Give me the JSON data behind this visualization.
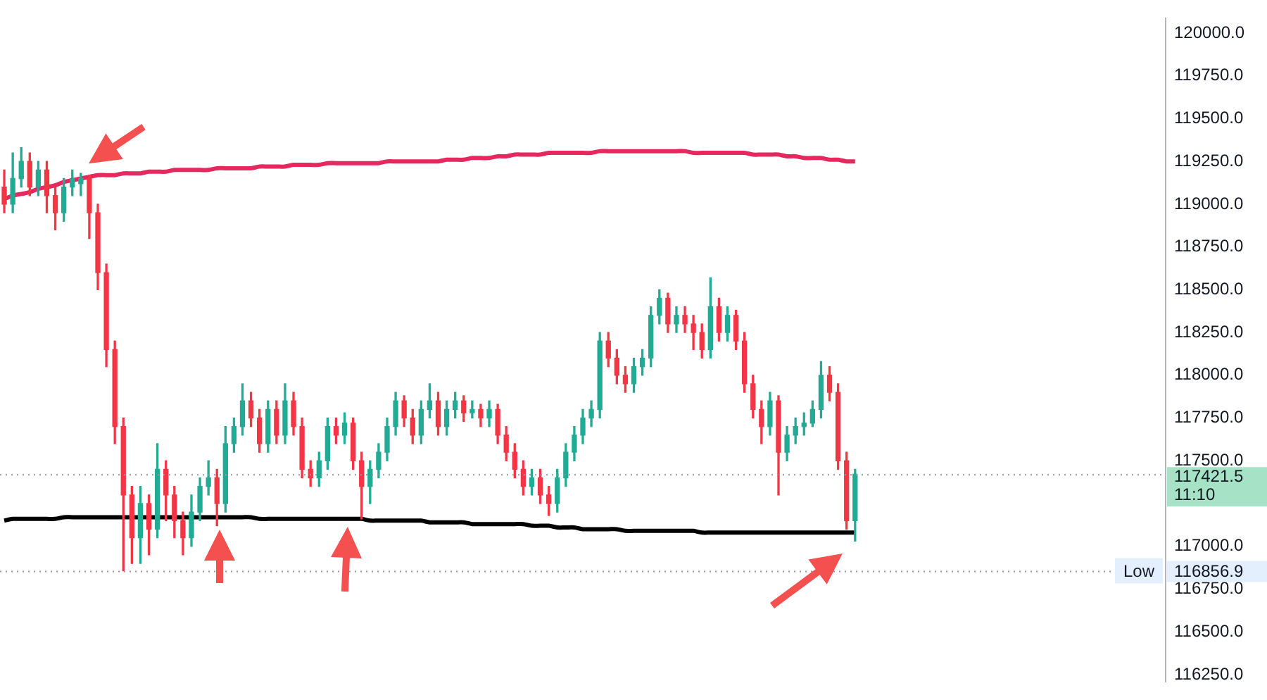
{
  "chart_data": {
    "type": "candlestick",
    "categories": [
      null,
      null,
      null,
      null,
      null,
      null,
      null,
      null,
      null,
      null,
      null,
      null,
      null,
      null,
      null,
      null,
      null,
      null,
      null,
      null,
      null,
      null,
      null,
      null,
      null,
      null,
      null,
      null,
      null,
      null,
      null,
      null,
      null,
      null,
      null,
      null,
      null,
      null,
      null,
      null,
      null,
      null,
      null,
      null,
      null,
      null,
      null,
      null,
      null,
      null,
      null,
      null,
      null,
      null,
      null,
      null,
      null,
      null,
      null,
      null,
      null,
      null,
      null,
      null,
      null,
      null,
      null,
      null,
      null,
      null,
      null,
      null,
      null,
      null,
      null,
      null,
      null,
      null,
      null,
      null,
      null,
      null,
      null,
      null,
      null,
      null,
      null,
      null,
      null,
      null,
      null,
      null,
      null,
      null,
      null,
      null,
      null,
      null,
      null,
      null,
      null,
      null,
      null,
      null,
      null,
      null,
      null,
      null,
      null,
      null,
      null,
      null,
      null,
      null,
      null,
      null,
      null,
      null,
      null,
      null,
      null,
      null,
      null,
      null,
      null,
      null,
      null,
      null,
      null,
      null,
      null,
      null,
      null,
      null,
      null,
      null,
      null
    ],
    "ohlc": [
      [
        119100,
        119200,
        118950,
        119000
      ],
      [
        119000,
        119300,
        118950,
        119150
      ],
      [
        119150,
        119330,
        119100,
        119250
      ],
      [
        119250,
        119300,
        119050,
        119100
      ],
      [
        119100,
        119250,
        119050,
        119200
      ],
      [
        119200,
        119250,
        118950,
        119050
      ],
      [
        119050,
        119100,
        118850,
        118950
      ],
      [
        118950,
        119150,
        118900,
        119100
      ],
      [
        119100,
        119200,
        119050,
        119150
      ],
      [
        119120,
        119180,
        119050,
        119150
      ],
      [
        119150,
        119170,
        118800,
        118950
      ],
      [
        118950,
        119000,
        118500,
        118600
      ],
      [
        118600,
        118650,
        118050,
        118150
      ],
      [
        118150,
        118200,
        117600,
        117700
      ],
      [
        117700,
        117750,
        116856.9,
        117300
      ],
      [
        117300,
        117350,
        116900,
        117050
      ],
      [
        117050,
        117350,
        116900,
        117250
      ],
      [
        117250,
        117300,
        116950,
        117100
      ],
      [
        117100,
        117600,
        117050,
        117450
      ],
      [
        117450,
        117500,
        117150,
        117300
      ],
      [
        117300,
        117350,
        117050,
        117150
      ],
      [
        117150,
        117200,
        116950,
        117050
      ],
      [
        117050,
        117300,
        117000,
        117200
      ],
      [
        117200,
        117400,
        117150,
        117350
      ],
      [
        117350,
        117500,
        117300,
        117400
      ],
      [
        117400,
        117450,
        117120,
        117250
      ],
      [
        117250,
        117700,
        117200,
        117600
      ],
      [
        117600,
        117750,
        117550,
        117700
      ],
      [
        117700,
        117950,
        117650,
        117850
      ],
      [
        117850,
        117900,
        117700,
        117750
      ],
      [
        117750,
        117800,
        117550,
        117600
      ],
      [
        117600,
        117850,
        117550,
        117800
      ],
      [
        117800,
        117850,
        117600,
        117650
      ],
      [
        117650,
        117950,
        117600,
        117850
      ],
      [
        117850,
        117900,
        117650,
        117700
      ],
      [
        117700,
        117750,
        117400,
        117450
      ],
      [
        117450,
        117500,
        117350,
        117400
      ],
      [
        117400,
        117550,
        117350,
        117500
      ],
      [
        117500,
        117750,
        117450,
        117700
      ],
      [
        117700,
        117750,
        117600,
        117650
      ],
      [
        117650,
        117780,
        117600,
        117720
      ],
      [
        117720,
        117750,
        117450,
        117500
      ],
      [
        117500,
        117550,
        117160,
        117350
      ],
      [
        117350,
        117500,
        117250,
        117450
      ],
      [
        117450,
        117600,
        117400,
        117550
      ],
      [
        117550,
        117750,
        117500,
        117700
      ],
      [
        117700,
        117900,
        117650,
        117850
      ],
      [
        117850,
        117880,
        117700,
        117750
      ],
      [
        117750,
        117800,
        117600,
        117650
      ],
      [
        117650,
        117850,
        117600,
        117800
      ],
      [
        117800,
        117950,
        117750,
        117850
      ],
      [
        117850,
        117900,
        117650,
        117700
      ],
      [
        117700,
        117850,
        117650,
        117800
      ],
      [
        117800,
        117900,
        117750,
        117850
      ],
      [
        117850,
        117880,
        117730,
        117780
      ],
      [
        117780,
        117850,
        117750,
        117800
      ],
      [
        117800,
        117830,
        117700,
        117750
      ],
      [
        117750,
        117850,
        117700,
        117800
      ],
      [
        117800,
        117830,
        117600,
        117650
      ],
      [
        117650,
        117700,
        117500,
        117550
      ],
      [
        117550,
        117600,
        117400,
        117450
      ],
      [
        117450,
        117500,
        117300,
        117350
      ],
      [
        117350,
        117450,
        117300,
        117400
      ],
      [
        117400,
        117450,
        117250,
        117300
      ],
      [
        117300,
        117350,
        117180,
        117250
      ],
      [
        117250,
        117450,
        117200,
        117400
      ],
      [
        117400,
        117600,
        117350,
        117550
      ],
      [
        117550,
        117700,
        117500,
        117650
      ],
      [
        117650,
        117800,
        117600,
        117750
      ],
      [
        117750,
        117850,
        117700,
        117800
      ],
      [
        117800,
        118250,
        117750,
        118200
      ],
      [
        118200,
        118250,
        118050,
        118100
      ],
      [
        118100,
        118150,
        117950,
        118000
      ],
      [
        118000,
        118050,
        117900,
        117950
      ],
      [
        117950,
        118100,
        117900,
        118050
      ],
      [
        118050,
        118150,
        118000,
        118100
      ],
      [
        118100,
        118400,
        118050,
        118350
      ],
      [
        118350,
        118500,
        118300,
        118450
      ],
      [
        118450,
        118480,
        118250,
        118300
      ],
      [
        118300,
        118400,
        118250,
        118350
      ],
      [
        118350,
        118400,
        118250,
        118300
      ],
      [
        118300,
        118350,
        118150,
        118250
      ],
      [
        118250,
        118300,
        118100,
        118150
      ],
      [
        118150,
        118570,
        118100,
        118400
      ],
      [
        118400,
        118450,
        118200,
        118250
      ],
      [
        118250,
        118400,
        118200,
        118350
      ],
      [
        118350,
        118380,
        118150,
        118200
      ],
      [
        118200,
        118250,
        117900,
        117950
      ],
      [
        117950,
        118000,
        117750,
        117800
      ],
      [
        117800,
        117850,
        117600,
        117700
      ],
      [
        117700,
        117900,
        117650,
        117850
      ],
      [
        117850,
        117880,
        117300,
        117550
      ],
      [
        117550,
        117700,
        117500,
        117650
      ],
      [
        117650,
        117750,
        117600,
        117700
      ],
      [
        117700,
        117780,
        117650,
        117720
      ],
      [
        117720,
        117850,
        117700,
        117800
      ],
      [
        117800,
        118080,
        117750,
        118000
      ],
      [
        118000,
        118050,
        117850,
        117900
      ],
      [
        117900,
        117950,
        117450,
        117500
      ],
      [
        117500,
        117550,
        117100,
        117150
      ],
      [
        117150,
        117450,
        117030,
        117421.5
      ],
      null,
      null,
      null,
      null,
      null,
      null,
      null,
      null,
      null,
      null,
      null,
      null,
      null,
      null,
      null,
      null,
      null,
      null,
      null,
      null,
      null,
      null,
      null,
      null,
      null,
      null,
      null,
      null,
      null,
      null,
      null,
      null,
      null,
      null,
      null,
      null
    ],
    "colors": [
      "#f23645",
      "#22ab94",
      "#22ab94",
      "#f23645",
      "#22ab94",
      "#f23645",
      "#f23645",
      "#22ab94",
      "#22ab94",
      "#22ab94",
      "#f23645",
      "#f23645",
      "#f23645",
      "#f23645",
      "#f23645",
      "#f23645",
      "#22ab94",
      "#f23645",
      "#22ab94",
      "#f23645",
      "#f23645",
      "#f23645",
      "#22ab94",
      "#22ab94",
      "#22ab94",
      "#f23645",
      "#22ab94",
      "#22ab94",
      "#22ab94",
      "#f23645",
      "#f23645",
      "#22ab94",
      "#f23645",
      "#22ab94",
      "#f23645",
      "#f23645",
      "#f23645",
      "#22ab94",
      "#22ab94",
      "#f23645",
      "#22ab94",
      "#f23645",
      "#f23645",
      "#22ab94",
      "#22ab94",
      "#22ab94",
      "#22ab94",
      "#f23645",
      "#f23645",
      "#22ab94",
      "#22ab94",
      "#f23645",
      "#22ab94",
      "#22ab94",
      "#f23645",
      "#22ab94",
      "#f23645",
      "#22ab94",
      "#f23645",
      "#f23645",
      "#f23645",
      "#f23645",
      "#22ab94",
      "#f23645",
      "#f23645",
      "#22ab94",
      "#22ab94",
      "#22ab94",
      "#22ab94",
      "#22ab94",
      "#22ab94",
      "#f23645",
      "#f23645",
      "#f23645",
      "#22ab94",
      "#22ab94",
      "#22ab94",
      "#22ab94",
      "#f23645",
      "#22ab94",
      "#f23645",
      "#f23645",
      "#f23645",
      "#22ab94",
      "#f23645",
      "#22ab94",
      "#f23645",
      "#f23645",
      "#f23645",
      "#f23645",
      "#22ab94",
      "#f23645",
      "#22ab94",
      "#22ab94",
      "#22ab94",
      "#22ab94",
      "#22ab94",
      "#f23645",
      "#f23645",
      "#f23645",
      "#22ab94",
      null,
      null,
      null,
      null,
      null,
      null,
      null,
      null,
      null,
      null,
      null,
      null,
      null,
      null,
      null,
      null,
      null,
      null,
      null,
      null,
      null,
      null,
      null,
      null,
      null,
      null,
      null,
      null,
      null,
      null,
      null,
      null,
      null,
      null,
      null,
      null
    ],
    "series": [
      {
        "type": "line",
        "color": "#e5295f",
        "values": [
          119030,
          119050,
          119060,
          119070,
          119090,
          119100,
          119110,
          119130,
          119140,
          119150,
          119160,
          119170,
          119170,
          119170,
          119180,
          119180,
          119180,
          119190,
          119190,
          119190,
          119200,
          119200,
          119200,
          119200,
          119200,
          119210,
          119210,
          119210,
          119210,
          119210,
          119220,
          119220,
          119220,
          119220,
          119230,
          119230,
          119230,
          119230,
          119240,
          119240,
          119240,
          119240,
          119240,
          119240,
          119240,
          119250,
          119250,
          119250,
          119250,
          119250,
          119250,
          119250,
          119260,
          119260,
          119260,
          119270,
          119270,
          119270,
          119280,
          119280,
          119290,
          119290,
          119290,
          119290,
          119300,
          119300,
          119300,
          119300,
          119300,
          119300,
          119310,
          119310,
          119310,
          119310,
          119310,
          119310,
          119310,
          119310,
          119310,
          119310,
          119310,
          119300,
          119300,
          119300,
          119300,
          119300,
          119300,
          119300,
          119290,
          119290,
          119290,
          119290,
          119280,
          119280,
          119270,
          119270,
          119270,
          119260,
          119260,
          119250,
          119250,
          null,
          null,
          null,
          null,
          null,
          null,
          null,
          null,
          null,
          null,
          null,
          null,
          null,
          null,
          null,
          null,
          null,
          null,
          null,
          null,
          null,
          null,
          null,
          null,
          null,
          null,
          null,
          null,
          null,
          null,
          null,
          null,
          null,
          null,
          null,
          null
        ]
      },
      {
        "type": "line",
        "color": "#000000",
        "values": [
          117150,
          117160,
          117160,
          117160,
          117160,
          117160,
          117160,
          117170,
          117170,
          117170,
          117170,
          117170,
          117170,
          117170,
          117170,
          117170,
          117170,
          117170,
          117170,
          117170,
          117170,
          117170,
          117170,
          117170,
          117170,
          117170,
          117170,
          117170,
          117170,
          117170,
          117160,
          117160,
          117160,
          117160,
          117160,
          117160,
          117160,
          117160,
          117160,
          117160,
          117160,
          117160,
          117160,
          117150,
          117150,
          117150,
          117150,
          117150,
          117150,
          117150,
          117140,
          117140,
          117140,
          117140,
          117140,
          117130,
          117130,
          117130,
          117130,
          117130,
          117130,
          117130,
          117120,
          117120,
          117120,
          117110,
          117110,
          117110,
          117100,
          117100,
          117100,
          117100,
          117100,
          117090,
          117090,
          117090,
          117090,
          117090,
          117090,
          117090,
          117090,
          117090,
          117080,
          117080,
          117080,
          117080,
          117080,
          117080,
          117080,
          117080,
          117080,
          117080,
          117080,
          117080,
          117080,
          117080,
          117080,
          117080,
          117080,
          117080,
          117080,
          null,
          null,
          null,
          null,
          null,
          null,
          null,
          null,
          null,
          null,
          null,
          null,
          null,
          null,
          null,
          null,
          null,
          null,
          null,
          null,
          null,
          null,
          null,
          null,
          null,
          null,
          null,
          null,
          null,
          null,
          null,
          null,
          null,
          null,
          null,
          null
        ]
      }
    ],
    "ylim": [
      116210,
      120085
    ],
    "yticks": [
      {
        "value": 116250,
        "label": "116250.0"
      },
      {
        "value": 116500,
        "label": "116500.0"
      },
      {
        "value": 116750,
        "label": "116750.0"
      },
      {
        "value": 117000,
        "label": "117000.0"
      },
      {
        "value": 117500,
        "label": "117500.0"
      },
      {
        "value": 117750,
        "label": "117750.0"
      },
      {
        "value": 118000,
        "label": "118000.0"
      },
      {
        "value": 118250,
        "label": "118250.0"
      },
      {
        "value": 118500,
        "label": "118500.0"
      },
      {
        "value": 118750,
        "label": "118750.0"
      },
      {
        "value": 119000,
        "label": "119000.0"
      },
      {
        "value": 119250,
        "label": "119250.0"
      },
      {
        "value": 119500,
        "label": "119500.0"
      },
      {
        "value": 119750,
        "label": "119750.0"
      },
      {
        "value": 120000,
        "label": "120000.0"
      }
    ],
    "ref_lines": [
      {
        "axis": "y",
        "value": 117421.5,
        "label": "117421.5",
        "color": "#9598a1",
        "line_style": "dotted"
      },
      {
        "axis": "y",
        "value": 116856.9,
        "label": "116856.9",
        "color": "#9598a1",
        "line_style": "dotted"
      }
    ],
    "annotations": [
      "11:10",
      "Low"
    ],
    "tick_labels": "y",
    "legend": false
  }
}
